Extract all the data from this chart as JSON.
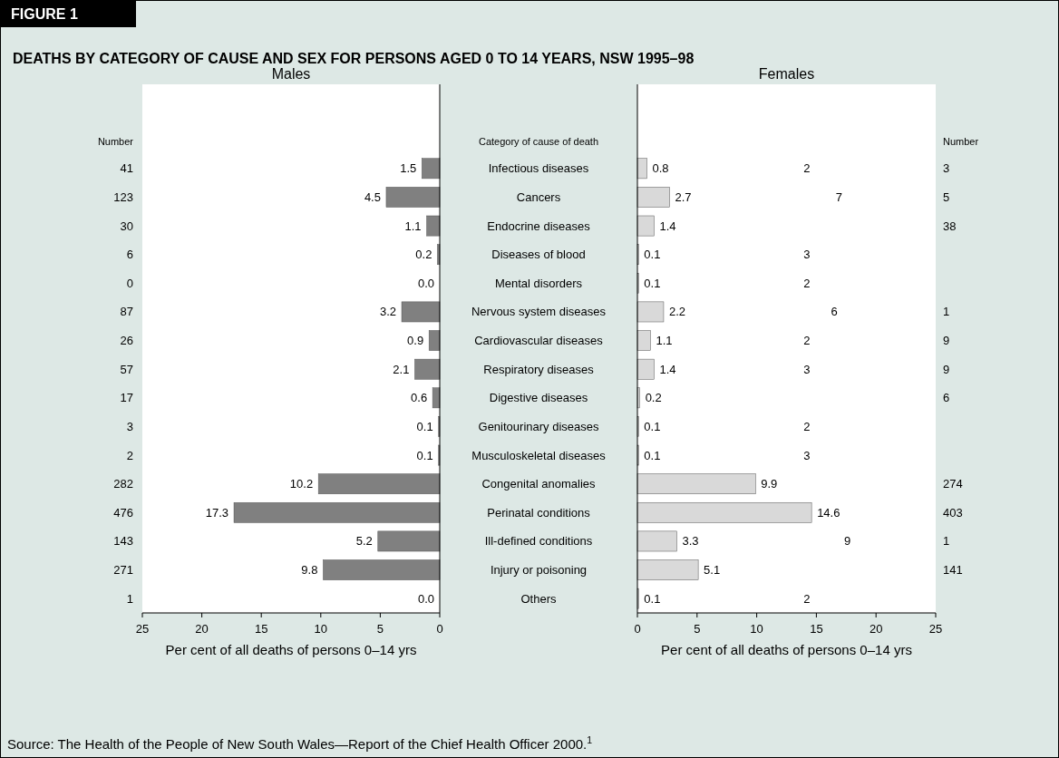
{
  "chart_data": [
    {
      "type": "bar",
      "orientation": "horizontal",
      "title": "Males",
      "xlabel": "Per cent of all deaths of persons 0–14 yrs",
      "color": "#808080",
      "xlim": [
        25,
        0
      ],
      "xticks": [
        25,
        20,
        15,
        10,
        5,
        0
      ],
      "categories": [
        "Infectious diseases",
        "Cancers",
        "Endocrine diseases",
        "Diseases of blood",
        "Mental disorders",
        "Nervous system diseases",
        "Cardiovascular diseases",
        "Respiratory diseases",
        "Digestive diseases",
        "Genitourinary diseases",
        "Musculoskeletal diseases",
        "Congenital anomalies",
        "Perinatal conditions",
        "Ill-defined conditions",
        "Injury or poisoning",
        "Others"
      ],
      "values": [
        1.5,
        4.5,
        1.1,
        0.2,
        0.0,
        3.2,
        0.9,
        2.1,
        0.6,
        0.1,
        0.1,
        10.2,
        17.3,
        5.2,
        9.8,
        0.0
      ],
      "value_labels": [
        "1.5",
        "4.5",
        "1.1",
        "0.2",
        "0.0",
        "3.2",
        "0.9",
        "2.1",
        "0.6",
        "0.1",
        "0.1",
        "10.2",
        "17.3",
        "5.2",
        "9.8",
        "0.0"
      ],
      "annotations": [
        "FIGURE 1",
        "DEATHS BY CATEGORY OF CAUSE AND SEX FOR PERSONS AGED 0 TO 14 YEARS, NSW 1995–98",
        "Category of cause of death",
        "Number",
        "Source: The Health of the People of New South Wales—Report of the Chief Health Officer 2000.$^{1}$",
        "41",
        "123",
        "30",
        "6",
        "0",
        "87",
        "26",
        "57",
        "17",
        "3",
        "2",
        "282",
        "476",
        "143",
        "271",
        "1"
      ]
    },
    {
      "type": "bar",
      "orientation": "horizontal",
      "title": "Females",
      "xlabel": "Per cent of all deaths of persons 0–14 yrs",
      "color": "#d9d9d9",
      "xlim": [
        0,
        25
      ],
      "xticks": [
        0,
        5,
        10,
        15,
        20,
        25
      ],
      "categories": [
        null,
        null,
        null,
        null,
        null,
        null,
        null,
        null,
        null,
        null,
        null,
        null,
        null,
        null,
        null,
        null
      ],
      "values": [
        0.8,
        2.7,
        1.4,
        0.1,
        0.1,
        2.2,
        1.1,
        1.4,
        0.2,
        0.1,
        0.1,
        9.9,
        14.6,
        3.3,
        5.1,
        0.1
      ],
      "value_labels": [
        "0.8",
        "2.7",
        "1.4",
        "0.1",
        "0.1",
        "2.2",
        "1.1",
        "1.4",
        "0.2",
        "0.1",
        "0.1",
        "9.9",
        "14.6",
        "3.3",
        "5.1",
        "0.1"
      ],
      "annotations": [
        "Number",
        "2",
        "3",
        "7",
        "5",
        "38",
        "3",
        "2",
        "6",
        "1",
        "2",
        "9",
        "3",
        "9",
        "6",
        "2",
        "3",
        "274",
        "403",
        "9",
        "1",
        "141",
        "2"
      ]
    }
  ]
}
